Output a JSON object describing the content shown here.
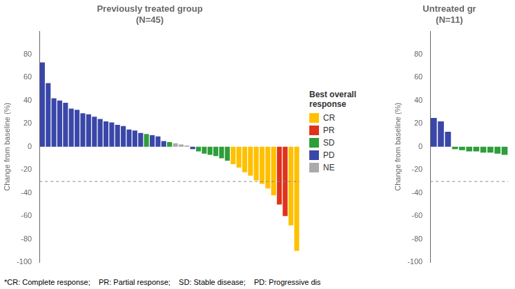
{
  "chart_data": [
    {
      "type": "bar",
      "title": "Previously treated group\n(N=45)",
      "ylabel": "Change from baseline (%)",
      "categories": [
        null,
        null,
        null,
        null,
        null,
        null,
        null,
        null,
        null,
        null,
        null,
        null,
        null,
        null,
        null,
        null,
        null,
        null,
        null,
        null,
        null,
        null,
        null,
        null,
        null,
        null,
        null,
        null,
        null,
        null,
        null,
        null,
        null,
        null,
        null,
        null,
        null,
        null,
        null,
        null,
        null,
        null,
        null,
        null,
        null
      ],
      "values": [
        73,
        55,
        42,
        40,
        38,
        33,
        32,
        29,
        28,
        26,
        24,
        22,
        21,
        19,
        18,
        15,
        14,
        12,
        11,
        10,
        9,
        5,
        4,
        3,
        2,
        1,
        -2,
        -4,
        -6,
        -7,
        -8,
        -10,
        -12,
        -15,
        -18,
        -22,
        -25,
        -29,
        -32,
        -36,
        -42,
        -50,
        -60,
        -68,
        -90
      ],
      "colors": [
        "#3A47A8",
        "#3A47A8",
        "#3A47A8",
        "#3A47A8",
        "#3A47A8",
        "#3A47A8",
        "#3A47A8",
        "#3A47A8",
        "#3A47A8",
        "#3A47A8",
        "#3A47A8",
        "#3A47A8",
        "#3A47A8",
        "#3A47A8",
        "#3A47A8",
        "#3A47A8",
        "#3A47A8",
        "#3A47A8",
        "#2E9E3A",
        "#3A47A8",
        "#3A47A8",
        "#3A47A8",
        "#2E9E3A",
        "#AAAAAA",
        "#AAAAAA",
        "#AAAAAA",
        "#3A47A8",
        "#2E9E3A",
        "#2E9E3A",
        "#2E9E3A",
        "#2E9E3A",
        "#2E9E3A",
        "#2E9E3A",
        "#FFC000",
        "#FFC000",
        "#FFC000",
        "#FFC000",
        "#FFC000",
        "#FFC000",
        "#FFC000",
        "#FFC000",
        "#E0321C",
        "#E0321C",
        "#FFC000",
        "#FFC000"
      ],
      "ylim": [
        -100,
        100
      ],
      "yticks": [
        -100,
        -80,
        -60,
        -40,
        -20,
        0,
        20,
        40,
        60,
        80
      ],
      "hline": -30,
      "grid": false,
      "tick_labels": "y"
    },
    {
      "type": "bar",
      "title": "Untreated gr\n(N=11)",
      "ylabel": "Change from baseline (%)",
      "categories": [
        null,
        null,
        null,
        null,
        null,
        null,
        null,
        null,
        null,
        null,
        null
      ],
      "values": [
        25,
        22,
        13,
        -2,
        -3,
        -4,
        -4,
        -5,
        -5,
        -6,
        -7
      ],
      "colors": [
        "#3A47A8",
        "#3A47A8",
        "#3A47A8",
        "#2E9E3A",
        "#2E9E3A",
        "#2E9E3A",
        "#2E9E3A",
        "#2E9E3A",
        "#2E9E3A",
        "#2E9E3A",
        "#2E9E3A"
      ],
      "ylim": [
        -100,
        100
      ],
      "yticks": [
        -100,
        -80,
        -60,
        -40,
        -20,
        0,
        20,
        40,
        60,
        80
      ],
      "hline": -30,
      "grid": false,
      "tick_labels": "y"
    }
  ],
  "legend_title": "Best overall\nresponse",
  "legend_items": [
    {
      "name": "CR",
      "color": "#FFC000"
    },
    {
      "name": "PR",
      "color": "#E0321C"
    },
    {
      "name": "SD",
      "color": "#2E9E3A"
    },
    {
      "name": "PD",
      "color": "#3A47A8"
    },
    {
      "name": "NE",
      "color": "#AAAAAA"
    }
  ],
  "footnote": "*CR: Complete response;    PR: Partial response;    SD: Stable disease;    PD: Progressive dis"
}
